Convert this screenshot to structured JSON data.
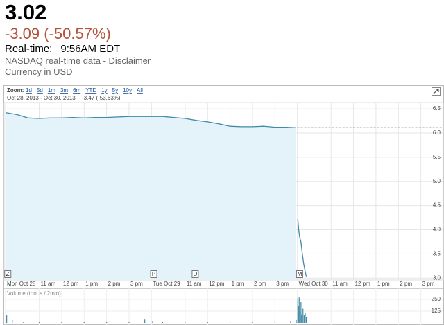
{
  "header": {
    "price": "3.02",
    "change": "-3.09 (-50.57%)",
    "realtime_label": "Real-time:",
    "realtime_value": "9:56AM EDT",
    "source": "NASDAQ real-time data - Disclaimer",
    "currency": "Currency in USD"
  },
  "chart_data": {
    "type": "line",
    "zoom_label": "Zoom:",
    "zoom_options": [
      "1d",
      "5d",
      "1m",
      "3m",
      "6m",
      "YTD",
      "1y",
      "5y",
      "10y",
      "All"
    ],
    "date_range": "Oct 28, 2013 - Oct 30, 2013",
    "range_change": "-3.47 (-53.63%)",
    "xlim": [
      0,
      19.5
    ],
    "ylim": [
      2.96,
      6.63
    ],
    "yticks": [
      {
        "value": 3.0,
        "label": "3.0"
      },
      3.5,
      {
        "value": 4.0,
        "label": "4.0"
      },
      4.5,
      {
        "value": 5.0,
        "label": "5.0"
      },
      5.5,
      {
        "value": 6.0,
        "label": "6.0"
      },
      6.5
    ],
    "xticks": [
      {
        "value": 0,
        "label": "Mon Oct 28"
      },
      {
        "value": 1.5,
        "label": "11 am"
      },
      {
        "value": 2.5,
        "label": "12 pm"
      },
      {
        "value": 3.5,
        "label": "1 pm"
      },
      {
        "value": 4.5,
        "label": "2 pm"
      },
      {
        "value": 5.5,
        "label": "3 pm"
      },
      {
        "value": 6.5,
        "label": "Tue Oct 29"
      },
      {
        "value": 8,
        "label": "11 am"
      },
      {
        "value": 9,
        "label": "12 pm"
      },
      {
        "value": 10,
        "label": "1 pm"
      },
      {
        "value": 11,
        "label": "2 pm"
      },
      {
        "value": 12,
        "label": "3 pm"
      },
      {
        "value": 13,
        "label": "Wed Oct 30"
      },
      {
        "value": 14.5,
        "label": "11 am"
      },
      {
        "value": 15.5,
        "label": "12 pm"
      },
      {
        "value": 16.5,
        "label": "1 pm"
      },
      {
        "value": 17.5,
        "label": "2 pm"
      },
      {
        "value": 18.5,
        "label": "3 pm"
      }
    ],
    "grid": true,
    "series": [
      {
        "color": "#3f8aa6",
        "fill": "#e4f2fa",
        "x": [
          0,
          0.5,
          1,
          1.5,
          2,
          2.5,
          3,
          3.5,
          4,
          4.5,
          5,
          5.5,
          6,
          6.5,
          7,
          7.5,
          8,
          8.5,
          9,
          9.5,
          10,
          10.5,
          11,
          11.5,
          12,
          12.5,
          12.95,
          null,
          13.02,
          13.06,
          13.1,
          13.16,
          13.22,
          13.28,
          13.34,
          13.4
        ],
        "values": [
          6.42,
          6.38,
          6.31,
          6.3,
          6.31,
          6.31,
          6.32,
          6.31,
          6.32,
          6.32,
          6.33,
          6.34,
          6.34,
          6.34,
          6.34,
          6.32,
          6.3,
          6.26,
          6.23,
          6.19,
          6.14,
          6.13,
          6.13,
          6.14,
          6.12,
          6.12,
          6.11,
          null,
          4.22,
          4.0,
          3.85,
          3.75,
          3.5,
          3.3,
          3.15,
          3.02
        ]
      }
    ],
    "previous_close": 6.11,
    "flags": [
      {
        "x": 0.1,
        "label": "Z"
      },
      {
        "x": 6.6,
        "label": "P"
      },
      {
        "x": 8.45,
        "label": "D"
      },
      {
        "x": 13.1,
        "label": "M"
      }
    ],
    "volume": {
      "label": "Volume (thous / 2min)",
      "color": "#3f8aa6",
      "ylim": [
        0,
        279
      ],
      "yticks": [
        125,
        250
      ],
      "x": [
        0.05,
        0.3,
        0.8,
        1.5,
        2.5,
        3.5,
        4.5,
        5.5,
        6.2,
        6.55,
        7,
        8,
        9,
        10,
        11,
        12,
        12.7,
        12.95,
        13.02,
        13.05,
        13.08,
        13.12,
        13.16,
        13.2,
        13.25,
        13.3,
        13.35,
        13.4
      ],
      "values": [
        80,
        30,
        15,
        10,
        8,
        12,
        10,
        15,
        35,
        20,
        10,
        12,
        14,
        10,
        12,
        15,
        20,
        30,
        260,
        180,
        270,
        120,
        220,
        90,
        150,
        80,
        110,
        60
      ]
    }
  }
}
